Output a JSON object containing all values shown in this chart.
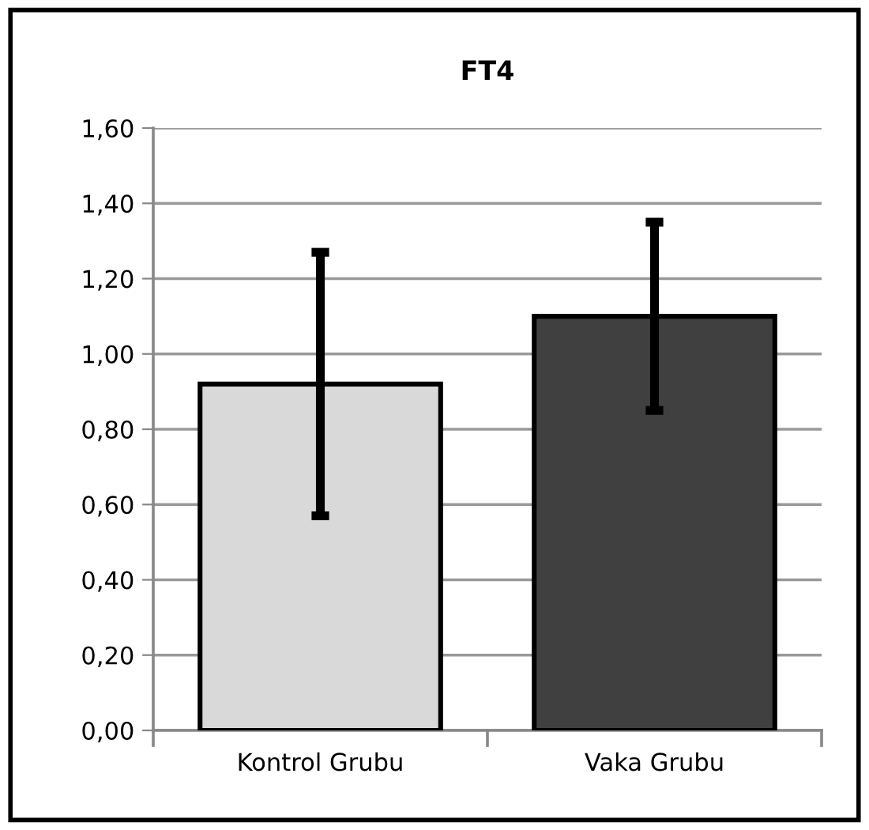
{
  "chart_data": {
    "type": "bar",
    "title": "FT4",
    "categories": [
      "Kontrol Grubu",
      "Vaka Grubu"
    ],
    "values": [
      0.92,
      1.1
    ],
    "colors": [
      "#d9d9d9",
      "#404040"
    ],
    "errors": [
      0.35,
      0.25
    ],
    "ylim": [
      0,
      1.6
    ],
    "yticks": [
      {
        "value": 0,
        "label": "0,00"
      },
      {
        "value": 0.2,
        "label": "0,20"
      },
      {
        "value": 0.4,
        "label": "0,40"
      },
      {
        "value": 0.6,
        "label": "0,60"
      },
      {
        "value": 0.8,
        "label": "0,80"
      },
      {
        "value": 1.0,
        "label": "1,00"
      },
      {
        "value": 1.2,
        "label": "1,20"
      },
      {
        "value": 1.4,
        "label": "1,40"
      },
      {
        "value": 1.6,
        "label": "1,60"
      }
    ],
    "grid": "y",
    "legend": false
  }
}
